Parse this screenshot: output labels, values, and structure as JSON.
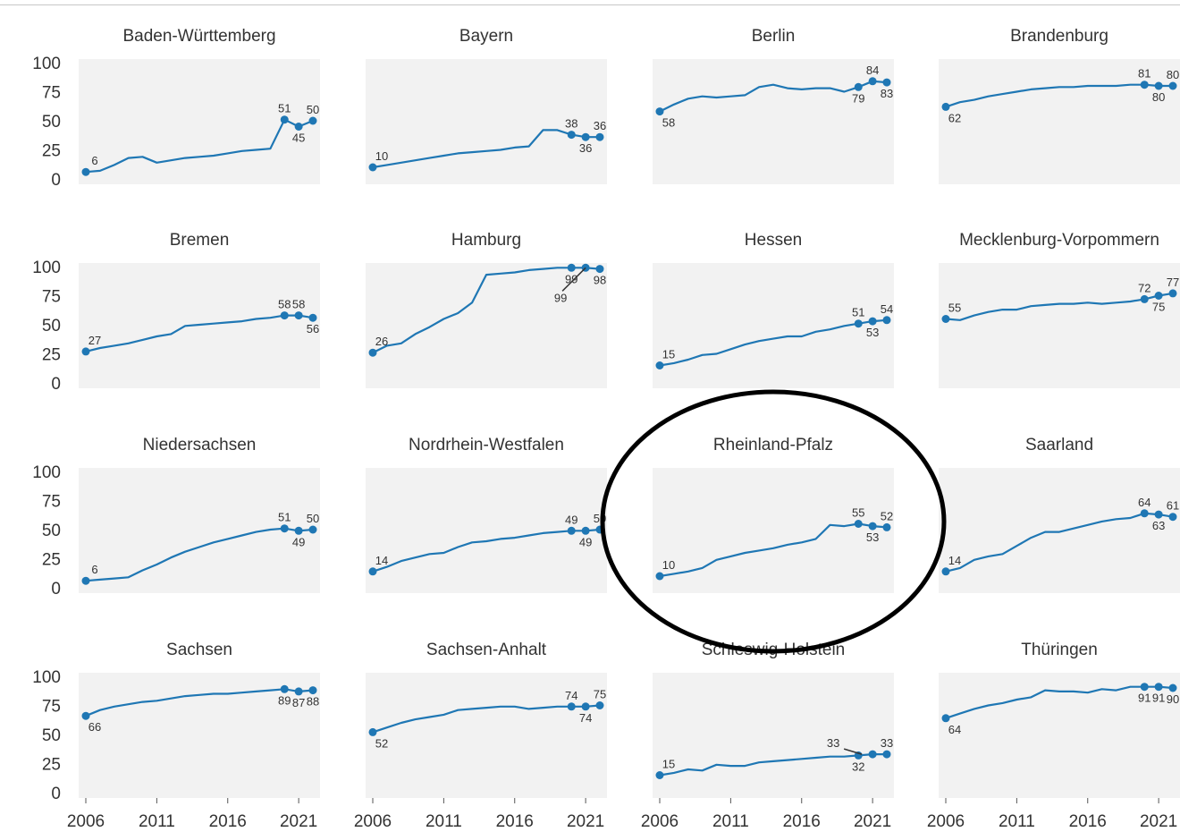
{
  "chart_data": {
    "type": "line",
    "layout": "small-multiples",
    "ylim": [
      0,
      100
    ],
    "yticks": [
      0,
      25,
      50,
      75,
      100
    ],
    "xticks": [
      2006,
      2011,
      2016,
      2021
    ],
    "xlim": [
      2006,
      2022
    ],
    "grid": false,
    "line_color": "#1f77b4",
    "panel_color": "#f2f2f2",
    "highlight": {
      "panel": "Rheinland-Pfalz",
      "shape": "ellipse",
      "color": "#000000"
    },
    "panels": [
      {
        "title": "Baden-Württemberg",
        "x": [
          2006,
          2007,
          2008,
          2009,
          2010,
          2011,
          2012,
          2013,
          2014,
          2015,
          2016,
          2017,
          2018,
          2019,
          2020,
          2021,
          2022
        ],
        "values": [
          6,
          7,
          12,
          18,
          19,
          14,
          16,
          18,
          19,
          20,
          22,
          24,
          25,
          26,
          51,
          45,
          50
        ],
        "labels": [
          {
            "i": 0,
            "text": "6",
            "pos": "above"
          },
          {
            "i": 14,
            "text": "51",
            "pos": "above"
          },
          {
            "i": 15,
            "text": "45",
            "pos": "below"
          },
          {
            "i": 16,
            "text": "50",
            "pos": "above"
          }
        ]
      },
      {
        "title": "Bayern",
        "x": [
          2006,
          2007,
          2008,
          2009,
          2010,
          2011,
          2012,
          2013,
          2014,
          2015,
          2016,
          2017,
          2018,
          2019,
          2020,
          2021,
          2022
        ],
        "values": [
          10,
          12,
          14,
          16,
          18,
          20,
          22,
          23,
          24,
          25,
          27,
          28,
          42,
          42,
          38,
          36,
          36
        ],
        "labels": [
          {
            "i": 0,
            "text": "10",
            "pos": "above"
          },
          {
            "i": 14,
            "text": "38",
            "pos": "above"
          },
          {
            "i": 15,
            "text": "36",
            "pos": "below"
          },
          {
            "i": 16,
            "text": "36",
            "pos": "above"
          }
        ]
      },
      {
        "title": "Berlin",
        "x": [
          2006,
          2007,
          2008,
          2009,
          2010,
          2011,
          2012,
          2013,
          2014,
          2015,
          2016,
          2017,
          2018,
          2019,
          2020,
          2021,
          2022
        ],
        "values": [
          58,
          64,
          69,
          71,
          70,
          71,
          72,
          79,
          81,
          78,
          77,
          78,
          78,
          75,
          79,
          84,
          83
        ],
        "labels": [
          {
            "i": 0,
            "text": "58",
            "pos": "below"
          },
          {
            "i": 14,
            "text": "79",
            "pos": "below"
          },
          {
            "i": 15,
            "text": "84",
            "pos": "above"
          },
          {
            "i": 16,
            "text": "83",
            "pos": "below"
          }
        ]
      },
      {
        "title": "Brandenburg",
        "x": [
          2006,
          2007,
          2008,
          2009,
          2010,
          2011,
          2012,
          2013,
          2014,
          2015,
          2016,
          2017,
          2018,
          2019,
          2020,
          2021,
          2022
        ],
        "values": [
          62,
          66,
          68,
          71,
          73,
          75,
          77,
          78,
          79,
          79,
          80,
          80,
          80,
          81,
          81,
          80,
          80
        ],
        "labels": [
          {
            "i": 0,
            "text": "62",
            "pos": "below"
          },
          {
            "i": 14,
            "text": "81",
            "pos": "above"
          },
          {
            "i": 15,
            "text": "80",
            "pos": "below"
          },
          {
            "i": 16,
            "text": "80",
            "pos": "above"
          }
        ]
      },
      {
        "title": "Bremen",
        "x": [
          2006,
          2007,
          2008,
          2009,
          2010,
          2011,
          2012,
          2013,
          2014,
          2015,
          2016,
          2017,
          2018,
          2019,
          2020,
          2021,
          2022
        ],
        "values": [
          27,
          30,
          32,
          34,
          37,
          40,
          42,
          49,
          50,
          51,
          52,
          53,
          55,
          56,
          58,
          58,
          56
        ],
        "labels": [
          {
            "i": 0,
            "text": "27",
            "pos": "above"
          },
          {
            "i": 14,
            "text": "58",
            "pos": "above"
          },
          {
            "i": 15,
            "text": "58",
            "pos": "above"
          },
          {
            "i": 16,
            "text": "56",
            "pos": "below"
          }
        ]
      },
      {
        "title": "Hamburg",
        "x": [
          2006,
          2007,
          2008,
          2009,
          2010,
          2011,
          2012,
          2013,
          2014,
          2015,
          2016,
          2017,
          2018,
          2019,
          2020,
          2021,
          2022
        ],
        "values": [
          26,
          32,
          34,
          42,
          48,
          55,
          60,
          69,
          93,
          94,
          95,
          97,
          98,
          99,
          99,
          99,
          98
        ],
        "labels": [
          {
            "i": 0,
            "text": "26",
            "pos": "above"
          },
          {
            "i": 14,
            "text": "99",
            "pos": "below"
          },
          {
            "i": 15,
            "text": "99",
            "pos": "leader"
          },
          {
            "i": 16,
            "text": "98",
            "pos": "below"
          }
        ]
      },
      {
        "title": "Hessen",
        "x": [
          2006,
          2007,
          2008,
          2009,
          2010,
          2011,
          2012,
          2013,
          2014,
          2015,
          2016,
          2017,
          2018,
          2019,
          2020,
          2021,
          2022
        ],
        "values": [
          15,
          17,
          20,
          24,
          25,
          29,
          33,
          36,
          38,
          40,
          40,
          44,
          46,
          49,
          51,
          53,
          54
        ],
        "labels": [
          {
            "i": 0,
            "text": "15",
            "pos": "above"
          },
          {
            "i": 14,
            "text": "51",
            "pos": "above"
          },
          {
            "i": 15,
            "text": "53",
            "pos": "below"
          },
          {
            "i": 16,
            "text": "54",
            "pos": "above"
          }
        ]
      },
      {
        "title": "Mecklenburg-Vorpommern",
        "x": [
          2006,
          2007,
          2008,
          2009,
          2010,
          2011,
          2012,
          2013,
          2014,
          2015,
          2016,
          2017,
          2018,
          2019,
          2020,
          2021,
          2022
        ],
        "values": [
          55,
          54,
          58,
          61,
          63,
          63,
          66,
          67,
          68,
          68,
          69,
          68,
          69,
          70,
          72,
          75,
          77
        ],
        "labels": [
          {
            "i": 0,
            "text": "55",
            "pos": "above"
          },
          {
            "i": 14,
            "text": "72",
            "pos": "above"
          },
          {
            "i": 15,
            "text": "75",
            "pos": "below"
          },
          {
            "i": 16,
            "text": "77",
            "pos": "above"
          }
        ]
      },
      {
        "title": "Niedersachsen",
        "x": [
          2006,
          2007,
          2008,
          2009,
          2010,
          2011,
          2012,
          2013,
          2014,
          2015,
          2016,
          2017,
          2018,
          2019,
          2020,
          2021,
          2022
        ],
        "values": [
          6,
          7,
          8,
          9,
          15,
          20,
          26,
          31,
          35,
          39,
          42,
          45,
          48,
          50,
          51,
          49,
          50
        ],
        "labels": [
          {
            "i": 0,
            "text": "6",
            "pos": "above"
          },
          {
            "i": 14,
            "text": "51",
            "pos": "above"
          },
          {
            "i": 15,
            "text": "49",
            "pos": "below"
          },
          {
            "i": 16,
            "text": "50",
            "pos": "above"
          }
        ]
      },
      {
        "title": "Nordrhein-Westfalen",
        "x": [
          2006,
          2007,
          2008,
          2009,
          2010,
          2011,
          2012,
          2013,
          2014,
          2015,
          2016,
          2017,
          2018,
          2019,
          2020,
          2021,
          2022
        ],
        "values": [
          14,
          18,
          23,
          26,
          29,
          30,
          35,
          39,
          40,
          42,
          43,
          45,
          47,
          48,
          49,
          49,
          50
        ],
        "labels": [
          {
            "i": 0,
            "text": "14",
            "pos": "above"
          },
          {
            "i": 14,
            "text": "49",
            "pos": "above"
          },
          {
            "i": 15,
            "text": "49",
            "pos": "below"
          },
          {
            "i": 16,
            "text": "50",
            "pos": "above"
          }
        ]
      },
      {
        "title": "Rheinland-Pfalz",
        "x": [
          2006,
          2007,
          2008,
          2009,
          2010,
          2011,
          2012,
          2013,
          2014,
          2015,
          2016,
          2017,
          2018,
          2019,
          2020,
          2021,
          2022
        ],
        "values": [
          10,
          12,
          14,
          17,
          24,
          27,
          30,
          32,
          34,
          37,
          39,
          42,
          54,
          53,
          55,
          53,
          52
        ],
        "labels": [
          {
            "i": 0,
            "text": "10",
            "pos": "above"
          },
          {
            "i": 14,
            "text": "55",
            "pos": "above"
          },
          {
            "i": 15,
            "text": "53",
            "pos": "below"
          },
          {
            "i": 16,
            "text": "52",
            "pos": "above"
          }
        ]
      },
      {
        "title": "Saarland",
        "x": [
          2006,
          2007,
          2008,
          2009,
          2010,
          2011,
          2012,
          2013,
          2014,
          2015,
          2016,
          2017,
          2018,
          2019,
          2020,
          2021,
          2022
        ],
        "values": [
          14,
          17,
          24,
          27,
          29,
          36,
          43,
          48,
          48,
          51,
          54,
          57,
          59,
          60,
          64,
          63,
          61
        ],
        "labels": [
          {
            "i": 0,
            "text": "14",
            "pos": "above"
          },
          {
            "i": 14,
            "text": "64",
            "pos": "above"
          },
          {
            "i": 15,
            "text": "63",
            "pos": "below"
          },
          {
            "i": 16,
            "text": "61",
            "pos": "above"
          }
        ]
      },
      {
        "title": "Sachsen",
        "x": [
          2006,
          2007,
          2008,
          2009,
          2010,
          2011,
          2012,
          2013,
          2014,
          2015,
          2016,
          2017,
          2018,
          2019,
          2020,
          2021,
          2022
        ],
        "values": [
          66,
          71,
          74,
          76,
          78,
          79,
          81,
          83,
          84,
          85,
          85,
          86,
          87,
          88,
          89,
          87,
          88
        ],
        "labels": [
          {
            "i": 0,
            "text": "66",
            "pos": "below"
          },
          {
            "i": 14,
            "text": "89",
            "pos": "below"
          },
          {
            "i": 15,
            "text": "87",
            "pos": "below"
          },
          {
            "i": 16,
            "text": "88",
            "pos": "below"
          }
        ]
      },
      {
        "title": "Sachsen-Anhalt",
        "x": [
          2006,
          2007,
          2008,
          2009,
          2010,
          2011,
          2012,
          2013,
          2014,
          2015,
          2016,
          2017,
          2018,
          2019,
          2020,
          2021,
          2022
        ],
        "values": [
          52,
          56,
          60,
          63,
          65,
          67,
          71,
          72,
          73,
          74,
          74,
          72,
          73,
          74,
          74,
          74,
          75
        ],
        "labels": [
          {
            "i": 0,
            "text": "52",
            "pos": "below"
          },
          {
            "i": 14,
            "text": "74",
            "pos": "above"
          },
          {
            "i": 15,
            "text": "74",
            "pos": "below"
          },
          {
            "i": 16,
            "text": "75",
            "pos": "above"
          }
        ]
      },
      {
        "title": "Schleswig-Holstein",
        "x": [
          2006,
          2007,
          2008,
          2009,
          2010,
          2011,
          2012,
          2013,
          2014,
          2015,
          2016,
          2017,
          2018,
          2019,
          2020,
          2021,
          2022
        ],
        "values": [
          15,
          17,
          20,
          19,
          24,
          23,
          23,
          26,
          27,
          28,
          29,
          30,
          31,
          31,
          32,
          33,
          33
        ],
        "labels": [
          {
            "i": 0,
            "text": "15",
            "pos": "above"
          },
          {
            "i": 14,
            "text": "32",
            "pos": "below"
          },
          {
            "i": 15,
            "text": "33",
            "pos": "leader"
          },
          {
            "i": 16,
            "text": "33",
            "pos": "above"
          }
        ]
      },
      {
        "title": "Thüringen",
        "x": [
          2006,
          2007,
          2008,
          2009,
          2010,
          2011,
          2012,
          2013,
          2014,
          2015,
          2016,
          2017,
          2018,
          2019,
          2020,
          2021,
          2022
        ],
        "values": [
          64,
          68,
          72,
          75,
          77,
          80,
          82,
          88,
          87,
          87,
          86,
          89,
          88,
          91,
          91,
          91,
          90
        ],
        "labels": [
          {
            "i": 0,
            "text": "64",
            "pos": "below"
          },
          {
            "i": 14,
            "text": "91",
            "pos": "below"
          },
          {
            "i": 15,
            "text": "91",
            "pos": "below"
          },
          {
            "i": 16,
            "text": "90",
            "pos": "below"
          }
        ]
      }
    ]
  }
}
